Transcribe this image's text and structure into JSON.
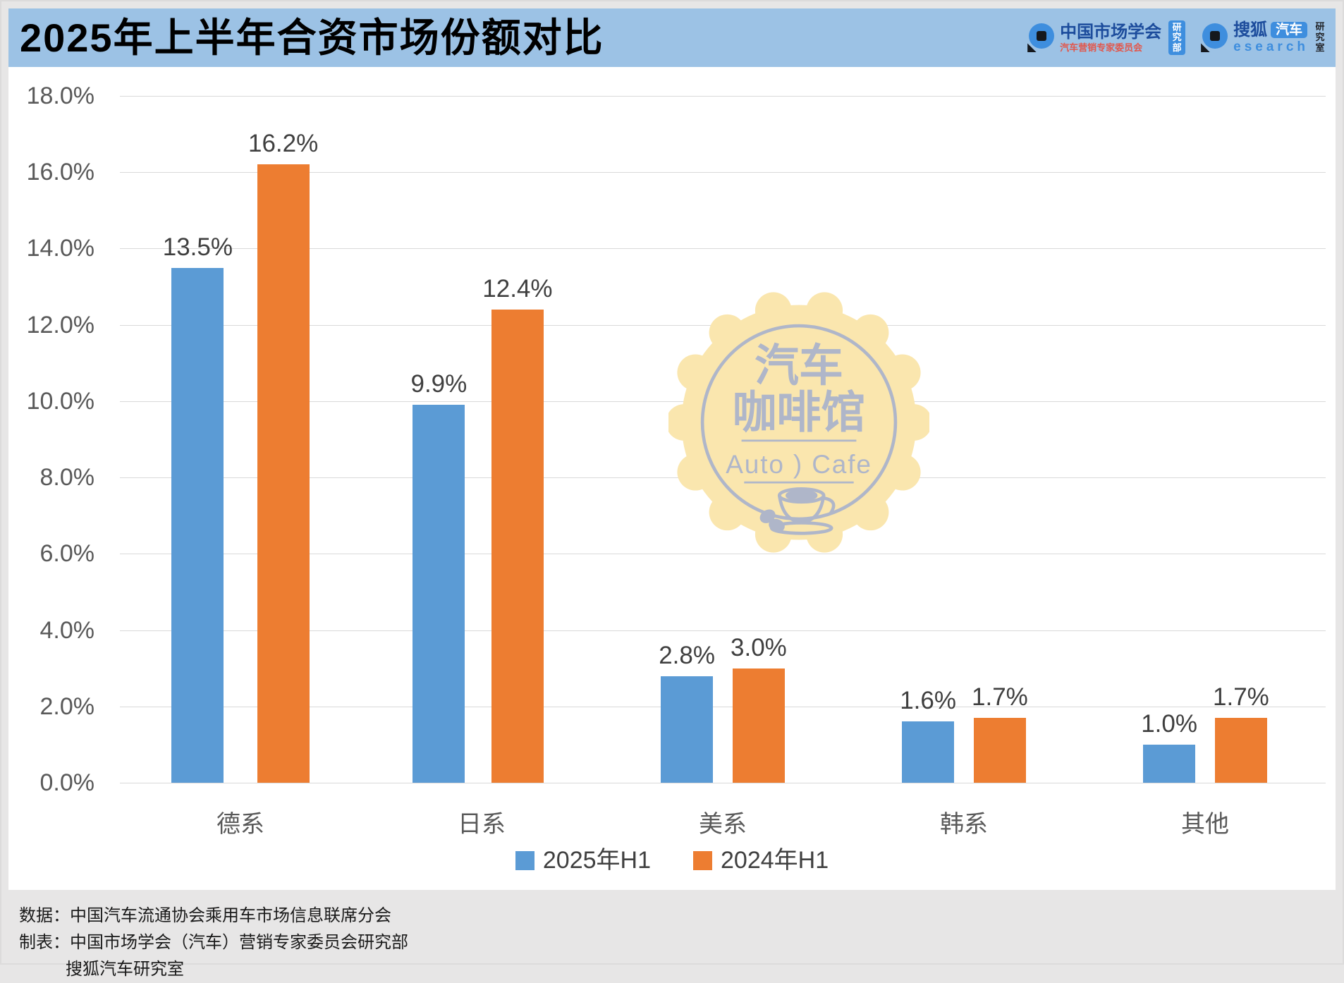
{
  "header": {
    "title": "2025年上半年合资市场份额对比",
    "logo_market": {
      "line1": "中国市场学会",
      "line2": "汽车营销专家委员会",
      "badge": "研究部"
    },
    "logo_sohu": {
      "line1": "搜狐",
      "badge": "汽车",
      "line2": "esearch",
      "side": "研究室"
    }
  },
  "chart_data": {
    "type": "bar",
    "title": "2025年上半年合资市场份额对比",
    "categories": [
      "德系",
      "日系",
      "美系",
      "韩系",
      "其他"
    ],
    "series": [
      {
        "name": "2025年H1",
        "color": "#5B9BD5",
        "values": [
          13.5,
          9.9,
          2.8,
          1.6,
          1.0
        ]
      },
      {
        "name": "2024年H1",
        "color": "#ED7D31",
        "values": [
          16.2,
          12.4,
          3.0,
          1.7,
          1.7
        ]
      }
    ],
    "ylabel": "",
    "xlabel": "",
    "ylim": [
      0,
      18
    ],
    "ytick_step": 2,
    "ytick_suffix": "%",
    "value_label_decimals": 1,
    "grid": true,
    "legend_position": "bottom",
    "gridline_color": "#D9D9D9",
    "tick_color": "#595959",
    "value_label_color": "#3F3F3F"
  },
  "watermark": {
    "line1": "汽车",
    "line2": "咖啡馆",
    "line3": "Auto ) Cafe",
    "badge_color": "#FAE6AE",
    "ink_color": "#AFB6C9"
  },
  "footer": {
    "line1": "数据：中国汽车流通协会乘用车市场信息联席分会",
    "line2": "制表：中国市场学会（汽车）营销专家委员会研究部",
    "line3": "搜狐汽车研究室"
  }
}
